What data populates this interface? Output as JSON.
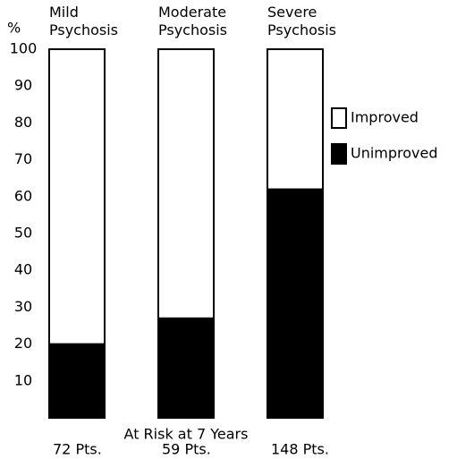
{
  "chart_data": {
    "type": "stacked_bar",
    "y_label": "%",
    "categories": [
      "Mild Psychosis",
      "Moderate Psychosis",
      "Severe Psychosis"
    ],
    "series": [
      {
        "name": "Unimproved",
        "color": "#000000",
        "values": [
          20,
          27,
          62
        ]
      },
      {
        "name": "Improved",
        "color": "#ffffff",
        "values": [
          80,
          73,
          38
        ]
      }
    ],
    "ylim": [
      0,
      100
    ],
    "yticks": [
      10,
      20,
      30,
      40,
      50,
      60,
      70,
      80,
      90,
      100
    ],
    "annotation": "At Risk at 7 Years",
    "bar_labels": [
      "72 Pts.",
      "59 Pts.",
      "148 Pts."
    ]
  }
}
